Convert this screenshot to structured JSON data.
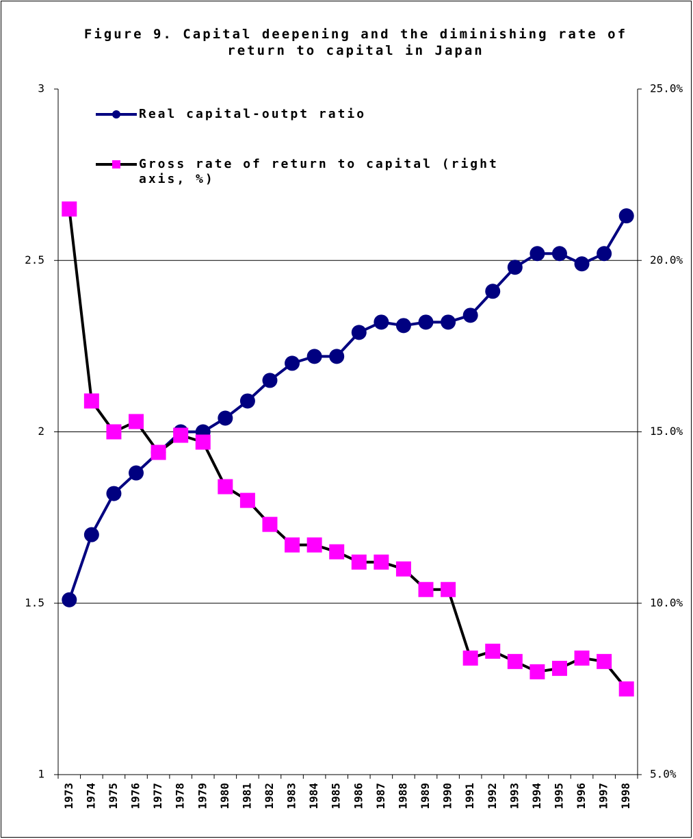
{
  "chart_data": {
    "type": "line",
    "title": "Figure 9. Capital deepening and the diminishing rate of return to capital in Japan",
    "categories": [
      "1973",
      "1974",
      "1975",
      "1976",
      "1977",
      "1978",
      "1979",
      "1980",
      "1981",
      "1982",
      "1983",
      "1984",
      "1985",
      "1986",
      "1987",
      "1988",
      "1989",
      "1990",
      "1991",
      "1992",
      "1993",
      "1994",
      "1995",
      "1996",
      "1997",
      "1998"
    ],
    "series": [
      {
        "name": "Real capital-outpt ratio",
        "color": "#000080",
        "marker": "circle",
        "values": [
          1.51,
          1.7,
          1.82,
          1.88,
          1.94,
          2.0,
          2.0,
          2.04,
          2.09,
          2.15,
          2.2,
          2.22,
          2.22,
          2.29,
          2.32,
          2.31,
          2.32,
          2.32,
          2.34,
          2.41,
          2.48,
          2.52,
          2.52,
          2.49,
          2.52,
          2.63
        ]
      },
      {
        "name": "Gross rate of return to capital (right axis, %)",
        "color": "#000000",
        "marker_color": "#ff00ff",
        "marker": "square",
        "axis": "y2",
        "values": [
          21.5,
          15.9,
          15.0,
          15.3,
          14.4,
          14.9,
          14.7,
          13.4,
          13.0,
          12.3,
          11.7,
          11.7,
          11.5,
          11.2,
          11.2,
          11.0,
          10.4,
          10.4,
          8.4,
          8.6,
          8.3,
          8.0,
          8.1,
          8.4,
          8.3,
          7.5
        ]
      }
    ],
    "ylim": [
      1,
      3
    ],
    "yticks": [
      1,
      1.5,
      2,
      2.5,
      3
    ],
    "y2lim": [
      5,
      25
    ],
    "y2ticks": [
      {
        "value": 5,
        "label": "5.0%"
      },
      {
        "value": 10,
        "label": "10.0%"
      },
      {
        "value": 15,
        "label": "15.0%"
      },
      {
        "value": 20,
        "label": "20.0%"
      },
      {
        "value": 25,
        "label": "25.0%"
      }
    ],
    "grid": true
  }
}
